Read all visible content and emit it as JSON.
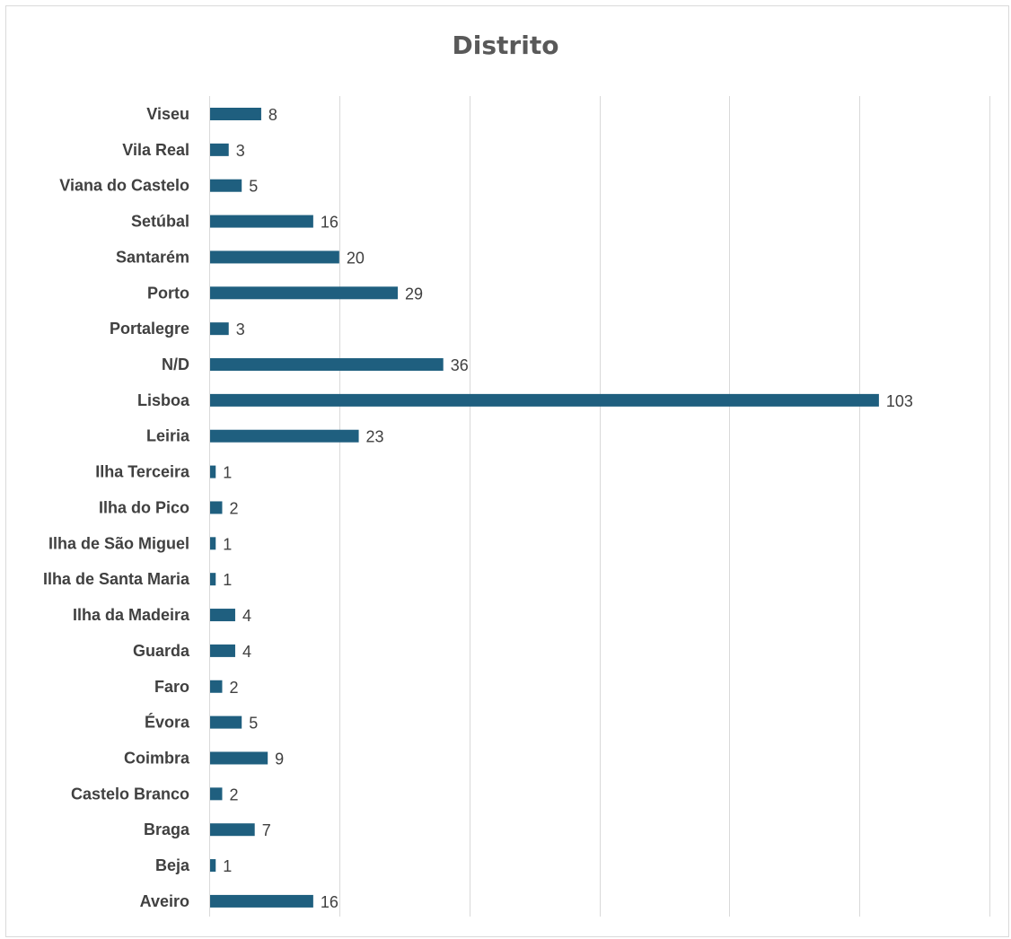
{
  "chart_data": {
    "type": "bar",
    "orientation": "horizontal",
    "title": "Distrito",
    "xlabel": "",
    "ylabel": "",
    "xlim": [
      0,
      120
    ],
    "grid": true,
    "legend": "none",
    "bar_color": "#1f5f7f",
    "categories": [
      "Viseu",
      "Vila Real",
      "Viana do Castelo",
      "Setúbal",
      "Santarém",
      "Porto",
      "Portalegre",
      "N/D",
      "Lisboa",
      "Leiria",
      "Ilha Terceira",
      "Ilha do Pico",
      "Ilha de São Miguel",
      "Ilha de Santa Maria",
      "Ilha da Madeira",
      "Guarda",
      "Faro",
      "Évora",
      "Coimbra",
      "Castelo Branco",
      "Braga",
      "Beja",
      "Aveiro"
    ],
    "values": [
      8,
      3,
      5,
      16,
      20,
      29,
      3,
      36,
      103,
      23,
      1,
      2,
      1,
      1,
      4,
      4,
      2,
      5,
      9,
      2,
      7,
      1,
      16
    ]
  }
}
